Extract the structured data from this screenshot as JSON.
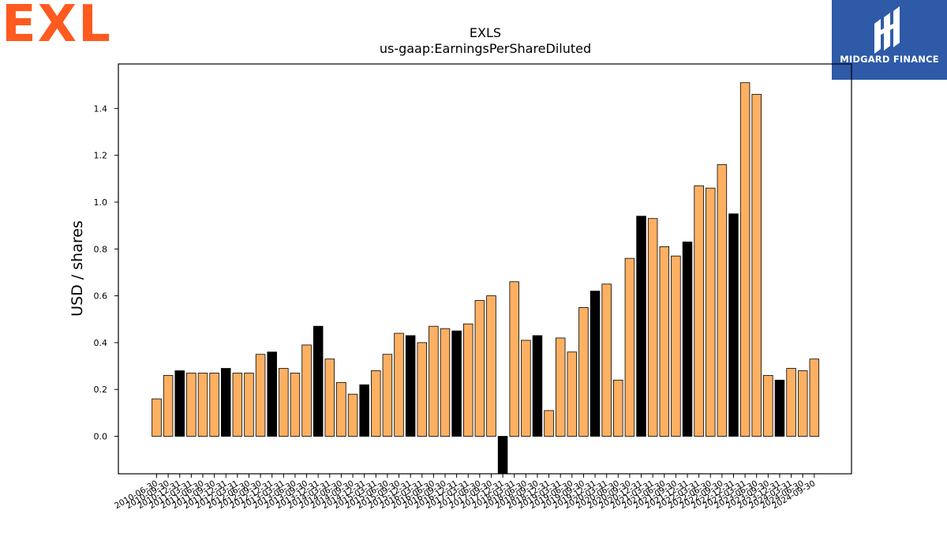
{
  "logos": {
    "left": "EXL",
    "right": "MIDGARD FINANCE"
  },
  "chart_data": {
    "type": "bar",
    "title": "EXLS",
    "subtitle": "us-gaap:EarningsPerShareDiluted",
    "xlabel": "",
    "ylabel": "USD / shares",
    "ylim": [
      -0.16,
      1.59
    ],
    "yticks": [
      "0.0",
      "0.2",
      "0.4",
      "0.6",
      "0.8",
      "1.0",
      "1.2",
      "1.4"
    ],
    "ytick_values": [
      0.0,
      0.2,
      0.4,
      0.6,
      0.8,
      1.0,
      1.2,
      1.4
    ],
    "grid": false,
    "colors": {
      "normal": "#fdb062",
      "highlight": "#000000",
      "edge": "#000000"
    },
    "categories": [
      "2010-06-30",
      "2010-09-30",
      "2010-12-31",
      "2011-03-31",
      "2011-06-30",
      "2011-09-30",
      "2011-12-31",
      "2012-03-31",
      "2012-06-30",
      "2012-09-30",
      "2012-12-31",
      "2013-03-31",
      "2013-06-30",
      "2013-09-30",
      "2013-12-31",
      "2014-03-31",
      "2014-06-30",
      "2014-09-30",
      "2014-12-31",
      "2015-03-31",
      "2015-06-30",
      "2015-09-30",
      "2015-12-31",
      "2016-03-31",
      "2016-06-30",
      "2016-09-30",
      "2016-12-31",
      "2017-03-31",
      "2017-06-30",
      "2017-09-30",
      "2017-12-31",
      "2018-03-31",
      "2018-06-30",
      "2018-09-30",
      "2018-12-31",
      "2019-03-31",
      "2019-06-30",
      "2019-09-30",
      "2019-12-31",
      "2020-03-31",
      "2020-06-30",
      "2020-09-30",
      "2020-12-31",
      "2021-03-31",
      "2021-06-30",
      "2021-09-30",
      "2021-12-31",
      "2022-03-31",
      "2022-06-30",
      "2022-09-30",
      "2022-12-31",
      "2023-03-31",
      "2023-06-30",
      "2023-09-30",
      "2023-12-31",
      "2024-03-31",
      "2024-06-30",
      "2024-09-30"
    ],
    "values": [
      0.16,
      0.26,
      0.28,
      0.27,
      0.27,
      0.27,
      0.29,
      0.27,
      0.27,
      0.35,
      0.36,
      0.29,
      0.27,
      0.39,
      0.47,
      0.33,
      0.23,
      0.18,
      0.22,
      0.28,
      0.35,
      0.44,
      0.43,
      0.4,
      0.47,
      0.46,
      0.45,
      0.48,
      0.58,
      0.6,
      -0.2,
      0.66,
      0.41,
      0.43,
      0.11,
      0.42,
      0.36,
      0.55,
      0.62,
      0.65,
      0.24,
      0.76,
      0.94,
      0.93,
      0.81,
      0.77,
      0.83,
      1.07,
      1.06,
      1.16,
      0.95,
      1.51,
      1.46,
      0.26,
      0.24,
      0.29,
      0.28,
      0.33
    ],
    "highlight": [
      false,
      false,
      true,
      false,
      false,
      false,
      true,
      false,
      false,
      false,
      true,
      false,
      false,
      false,
      true,
      false,
      false,
      false,
      true,
      false,
      false,
      false,
      true,
      false,
      false,
      false,
      true,
      false,
      false,
      false,
      true,
      false,
      false,
      true,
      false,
      false,
      false,
      false,
      true,
      false,
      false,
      false,
      true,
      false,
      false,
      false,
      true,
      false,
      false,
      false,
      true,
      false,
      false,
      false,
      true,
      false,
      false,
      false
    ]
  }
}
